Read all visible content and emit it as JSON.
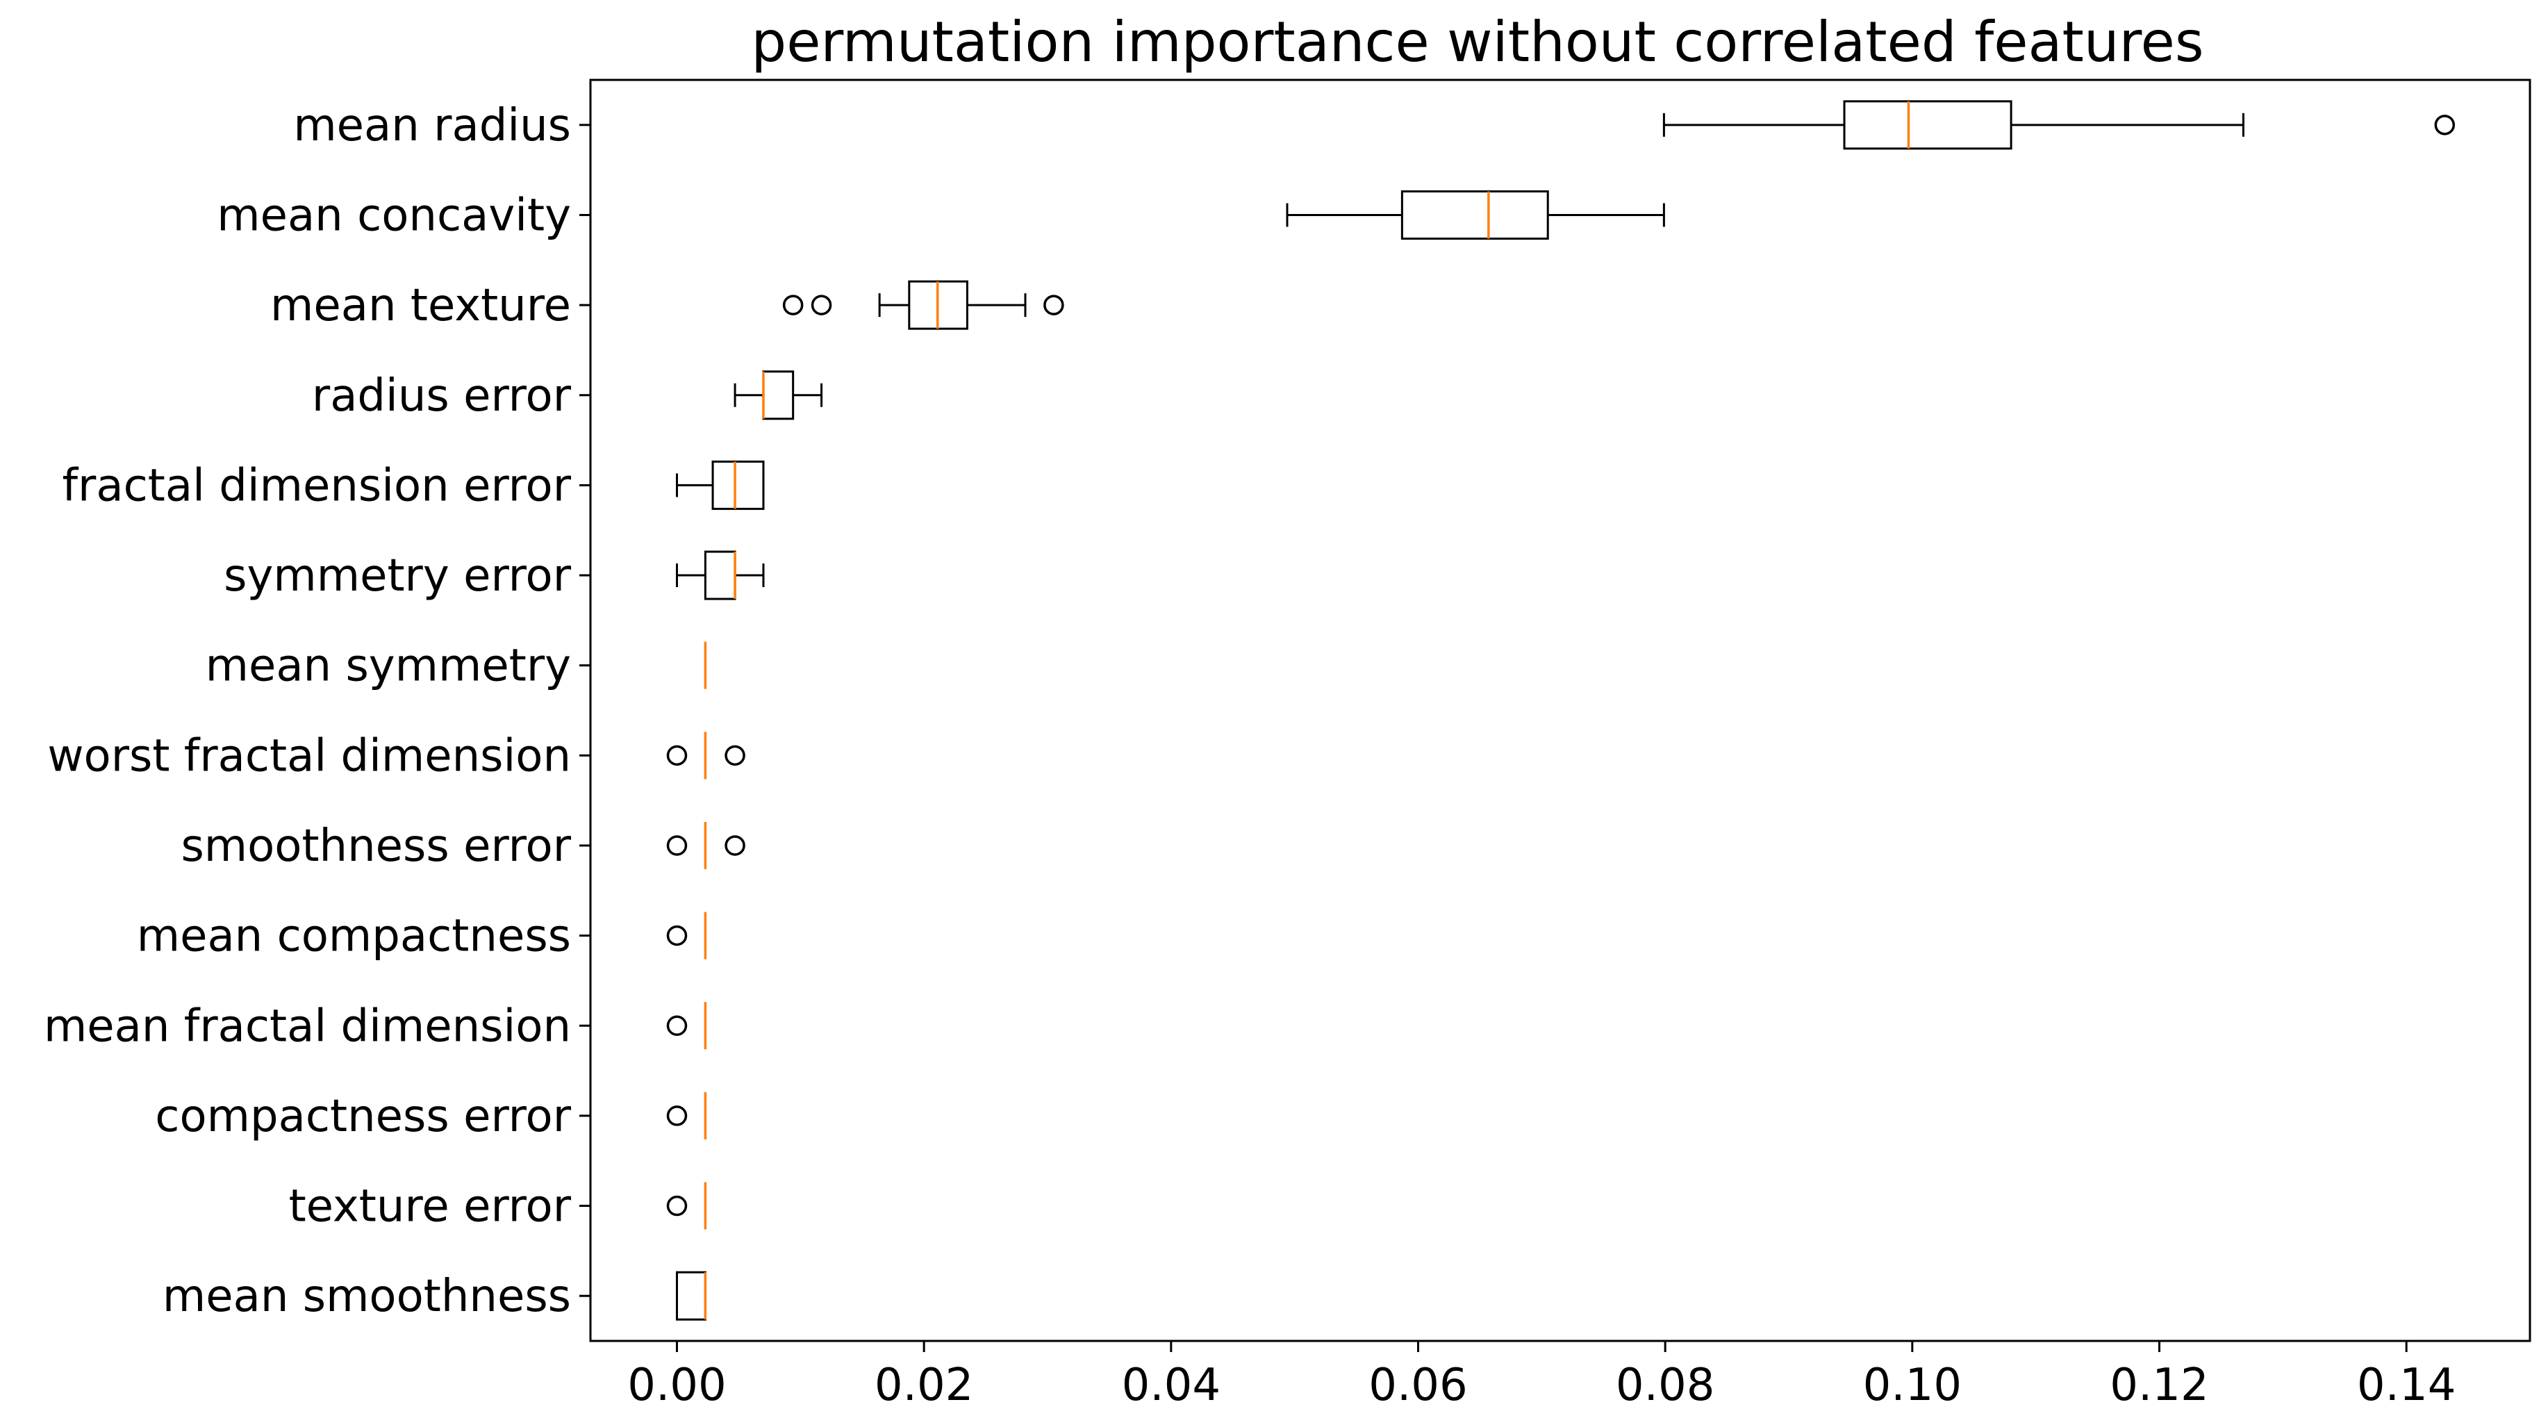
{
  "chart_data": {
    "type": "boxplot",
    "orientation": "horizontal",
    "title": "permutation importance without correlated features",
    "xlabel": "",
    "ylabel": "",
    "xlim": [
      -0.007,
      0.15
    ],
    "xticks": [
      0.0,
      0.02,
      0.04,
      0.06,
      0.08,
      0.1,
      0.12,
      0.14
    ],
    "xtick_labels": [
      "0.00",
      "0.02",
      "0.04",
      "0.06",
      "0.08",
      "0.10",
      "0.12",
      "0.14"
    ],
    "grid": false,
    "colors": {
      "box": "#000000",
      "median": "#ff7f0e",
      "flier": "#000000"
    },
    "categories": [
      "mean radius",
      "mean concavity",
      "mean texture",
      "radius error",
      "fractal dimension error",
      "symmetry error",
      "mean symmetry",
      "worst fractal dimension",
      "smoothness error",
      "mean compactness",
      "mean fractal dimension",
      "compactness error",
      "texture error",
      "mean smoothness"
    ],
    "boxes": [
      {
        "label": "mean radius",
        "whislo": 0.0799,
        "q1": 0.0945,
        "med": 0.0997,
        "q3": 0.108,
        "whishi": 0.1268,
        "fliers": [
          0.1431
        ]
      },
      {
        "label": "mean concavity",
        "whislo": 0.0494,
        "q1": 0.0587,
        "med": 0.0657,
        "q3": 0.0705,
        "whishi": 0.0799,
        "fliers": []
      },
      {
        "label": "mean texture",
        "whislo": 0.0164,
        "q1": 0.0188,
        "med": 0.0211,
        "q3": 0.0235,
        "whishi": 0.0282,
        "fliers": [
          0.0094,
          0.0117,
          0.0305
        ]
      },
      {
        "label": "radius error",
        "whislo": 0.0047,
        "q1": 0.007,
        "med": 0.007,
        "q3": 0.0094,
        "whishi": 0.0117,
        "fliers": []
      },
      {
        "label": "fractal dimension error",
        "whislo": 0.0,
        "q1": 0.0029,
        "med": 0.0047,
        "q3": 0.007,
        "whishi": 0.007,
        "fliers": []
      },
      {
        "label": "symmetry error",
        "whislo": 0.0,
        "q1": 0.0023,
        "med": 0.0047,
        "q3": 0.0047,
        "whishi": 0.007,
        "fliers": []
      },
      {
        "label": "mean symmetry",
        "whislo": 0.0023,
        "q1": 0.0023,
        "med": 0.0023,
        "q3": 0.0023,
        "whishi": 0.0023,
        "fliers": []
      },
      {
        "label": "worst fractal dimension",
        "whislo": 0.0023,
        "q1": 0.0023,
        "med": 0.0023,
        "q3": 0.0023,
        "whishi": 0.0023,
        "fliers": [
          0.0,
          0.0047
        ]
      },
      {
        "label": "smoothness error",
        "whislo": 0.0023,
        "q1": 0.0023,
        "med": 0.0023,
        "q3": 0.0023,
        "whishi": 0.0023,
        "fliers": [
          0.0,
          0.0047
        ]
      },
      {
        "label": "mean compactness",
        "whislo": 0.0023,
        "q1": 0.0023,
        "med": 0.0023,
        "q3": 0.0023,
        "whishi": 0.0023,
        "fliers": [
          0.0
        ]
      },
      {
        "label": "mean fractal dimension",
        "whislo": 0.0023,
        "q1": 0.0023,
        "med": 0.0023,
        "q3": 0.0023,
        "whishi": 0.0023,
        "fliers": [
          0.0
        ]
      },
      {
        "label": "compactness error",
        "whislo": 0.0023,
        "q1": 0.0023,
        "med": 0.0023,
        "q3": 0.0023,
        "whishi": 0.0023,
        "fliers": [
          0.0
        ]
      },
      {
        "label": "texture error",
        "whislo": 0.0023,
        "q1": 0.0023,
        "med": 0.0023,
        "q3": 0.0023,
        "whishi": 0.0023,
        "fliers": [
          0.0
        ]
      },
      {
        "label": "mean smoothness",
        "whislo": 0.0,
        "q1": 0.0,
        "med": 0.0023,
        "q3": 0.0023,
        "whishi": 0.0023,
        "fliers": []
      }
    ]
  }
}
